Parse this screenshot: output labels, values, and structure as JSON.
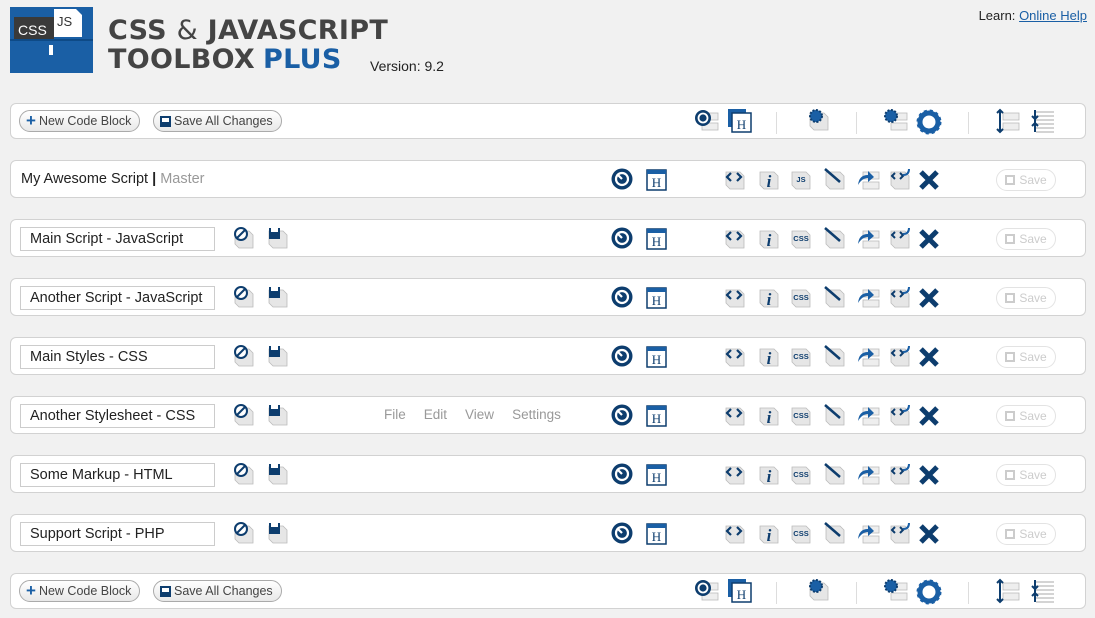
{
  "header": {
    "logo_text": [
      "CSS",
      "JS"
    ],
    "title_line1_a": "CSS",
    "title_amp": "&",
    "title_line1_b": "JAVASCRIPT",
    "title_line2": "TOOLBOX",
    "title_plus": "PLUS",
    "version": "Version: 9.2",
    "learn_label": "Learn:",
    "help_link": "Online Help"
  },
  "toolbar": {
    "new_label": "New Code Block",
    "save_all_label": "Save All Changes"
  },
  "master": {
    "name": "My Awesome Script",
    "sep": "|",
    "label": "Master",
    "type_icon_text": "JS"
  },
  "rows": [
    {
      "name": "Main Script - JavaScript",
      "type": "CSS"
    },
    {
      "name": "Another Script - JavaScript",
      "type": "CSS"
    },
    {
      "name": "Main Styles - CSS",
      "type": "CSS"
    },
    {
      "name": "Another Stylesheet - CSS",
      "type": "CSS",
      "menu": [
        "File",
        "Edit",
        "View",
        "Settings"
      ]
    },
    {
      "name": "Some Markup - HTML",
      "type": "CSS"
    },
    {
      "name": "Support Script - PHP",
      "type": "CSS"
    }
  ],
  "save_label": "Save",
  "colors": {
    "accent": "#1a5fa5",
    "dark_blue": "#0d3d6e",
    "background": "#f1f1f1"
  }
}
